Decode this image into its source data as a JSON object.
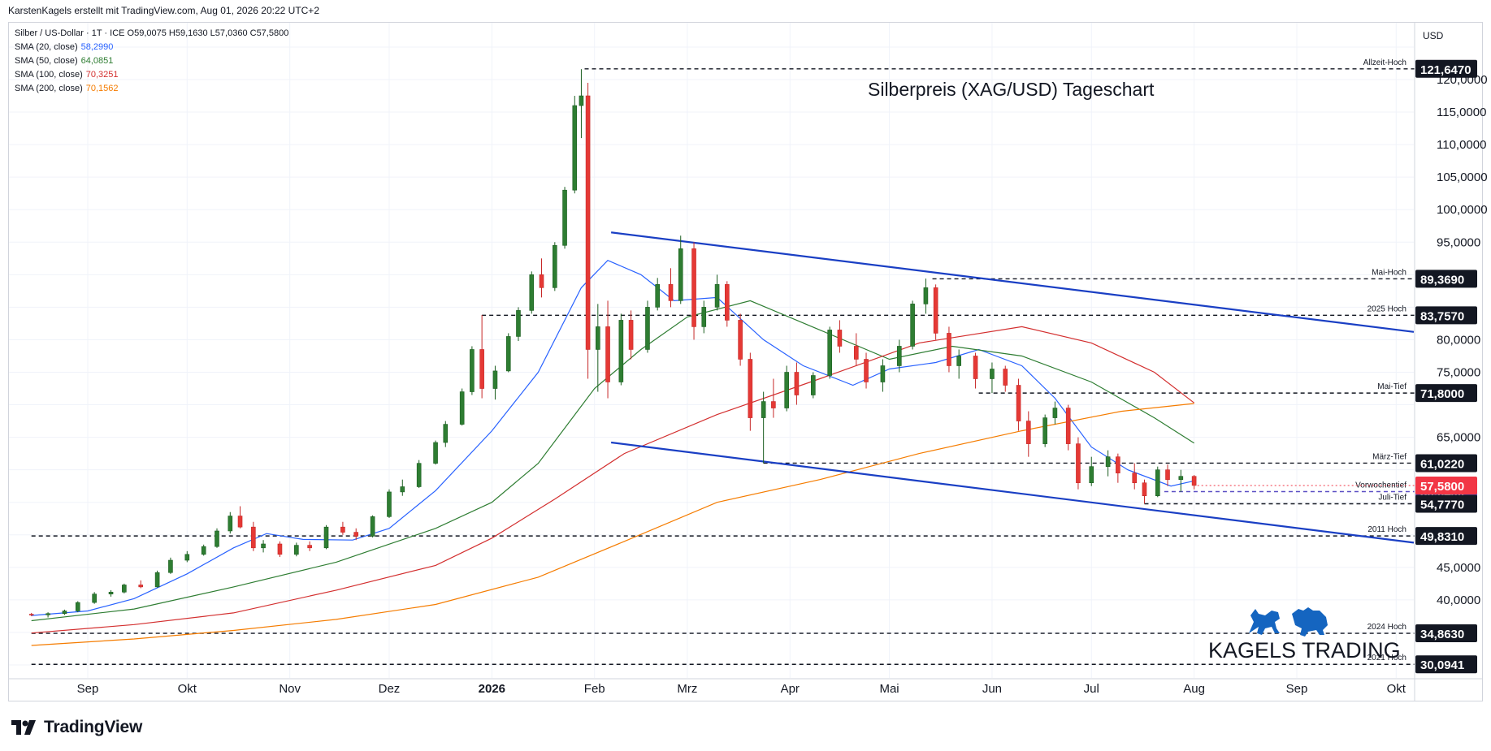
{
  "header": {
    "attribution": "KarstenKagels erstellt mit TradingView.com, Aug 01, 2026 20:22 UTC+2"
  },
  "branding": {
    "tradingview": "TradingView",
    "kagels": "KAGELS TRADING"
  },
  "legend": {
    "symbol_line": "Silber / US-Dollar · 1T · ICE  O59,0075  H59,1630  L57,0360  C57,5800",
    "sma": [
      {
        "label": "SMA (20, close)",
        "value": "58,2990",
        "color": "#2962ff"
      },
      {
        "label": "SMA (50, close)",
        "value": "64,0851",
        "color": "#2e7d32"
      },
      {
        "label": "SMA (100, close)",
        "value": "70,3251",
        "color": "#d32f2f"
      },
      {
        "label": "SMA (200, close)",
        "value": "70,1562",
        "color": "#f57c00"
      }
    ]
  },
  "chart_data": {
    "type": "candlestick",
    "title": "Silberpreis (XAG/USD) Tageschart",
    "currency": "USD",
    "ylim": [
      28,
      126
    ],
    "x_ticks": [
      {
        "label": "Sep",
        "date": "2025-09-01"
      },
      {
        "label": "Okt",
        "date": "2025-10-01"
      },
      {
        "label": "Nov",
        "date": "2025-11-01"
      },
      {
        "label": "Dez",
        "date": "2025-12-01"
      },
      {
        "label": "2026",
        "date": "2026-01-01",
        "bold": true
      },
      {
        "label": "Feb",
        "date": "2026-02-01"
      },
      {
        "label": "Mrz",
        "date": "2026-03-01"
      },
      {
        "label": "Apr",
        "date": "2026-04-01"
      },
      {
        "label": "Mai",
        "date": "2026-05-01"
      },
      {
        "label": "Jun",
        "date": "2026-06-01"
      },
      {
        "label": "Jul",
        "date": "2026-07-01"
      },
      {
        "label": "Aug",
        "date": "2026-08-01"
      },
      {
        "label": "Sep",
        "date": "2026-09-01"
      },
      {
        "label": "Okt",
        "date": "2026-10-01"
      }
    ],
    "y_ticks": [
      "40,0000",
      "45,0000",
      "65,0000",
      "75,0000",
      "80,0000",
      "95,0000",
      "100,0000",
      "105,0000",
      "110,0000",
      "115,0000",
      "120,0000"
    ],
    "y_tick_values": [
      40,
      45,
      65,
      75,
      80,
      95,
      100,
      105,
      110,
      115,
      120
    ],
    "price_levels": [
      {
        "label": "Allzeit-Hoch",
        "value": 121.647,
        "text": "121,6470",
        "color": "#131722",
        "from": "2026-01-29"
      },
      {
        "label": "Mai-Hoch",
        "value": 89.369,
        "text": "89,3690",
        "color": "#131722",
        "from": "2026-05-14"
      },
      {
        "label": "2025 Hoch",
        "value": 83.757,
        "text": "83,7570",
        "color": "#131722",
        "from": "2025-12-29"
      },
      {
        "label": "Mai-Tief",
        "value": 71.8,
        "text": "71,8000",
        "color": "#131722",
        "from": "2026-05-28"
      },
      {
        "label": "März-Tief",
        "value": 61.022,
        "text": "61,0220",
        "color": "#131722",
        "from": "2026-03-24"
      },
      {
        "label": "Vorwochentief",
        "value": 56.649,
        "text": "56,6490",
        "color": "#5b4fc4",
        "from": "2026-07-23"
      },
      {
        "label": "Juli-Tief",
        "value": 54.777,
        "text": "54,7770",
        "color": "#131722",
        "from": "2026-07-17"
      },
      {
        "label": "2011 Hoch",
        "value": 49.831,
        "text": "49,8310",
        "color": "#131722",
        "from": "2025-08-15"
      },
      {
        "label": "2024 Hoch",
        "value": 34.863,
        "text": "34,8630",
        "color": "#131722",
        "from": "2025-08-15"
      },
      {
        "label": "2021 Hoch",
        "value": 30.0941,
        "text": "30,0941",
        "color": "#131722",
        "from": "2025-08-15"
      }
    ],
    "last_price": {
      "value": 57.58,
      "text": "57,5800",
      "color": "#f23645"
    },
    "channel": [
      {
        "from_date": "2026-02-06",
        "from_value": 96.5,
        "to_date": "2026-10-10",
        "to_value": 81.2
      },
      {
        "from_date": "2026-02-06",
        "from_value": 64.2,
        "to_date": "2026-10-10",
        "to_value": 48.8
      }
    ],
    "sma_series": [
      {
        "name": "SMA (20, close)",
        "color": "#2962ff",
        "points": [
          [
            "2025-08-15",
            37.6
          ],
          [
            "2025-09-01",
            38.3
          ],
          [
            "2025-09-15",
            40.2
          ],
          [
            "2025-10-01",
            44.0
          ],
          [
            "2025-10-15",
            48.0
          ],
          [
            "2025-10-25",
            50.2
          ],
          [
            "2025-11-05",
            49.3
          ],
          [
            "2025-11-20",
            49.2
          ],
          [
            "2025-12-01",
            51.0
          ],
          [
            "2025-12-15",
            56.8
          ],
          [
            "2026-01-01",
            66.0
          ],
          [
            "2026-01-15",
            75.0
          ],
          [
            "2026-01-28",
            88.0
          ],
          [
            "2026-02-05",
            92.2
          ],
          [
            "2026-02-15",
            90.0
          ],
          [
            "2026-02-25",
            86.0
          ],
          [
            "2026-03-10",
            86.5
          ],
          [
            "2026-03-24",
            80.0
          ],
          [
            "2026-04-05",
            76.0
          ],
          [
            "2026-04-20",
            73.0
          ],
          [
            "2026-05-01",
            75.5
          ],
          [
            "2026-05-15",
            76.5
          ],
          [
            "2026-05-28",
            78.5
          ],
          [
            "2026-06-10",
            76.0
          ],
          [
            "2026-06-20",
            71.0
          ],
          [
            "2026-07-01",
            63.5
          ],
          [
            "2026-07-12",
            60.0
          ],
          [
            "2026-07-25",
            57.5
          ],
          [
            "2026-08-01",
            58.3
          ]
        ]
      },
      {
        "name": "SMA (50, close)",
        "color": "#2e7d32",
        "points": [
          [
            "2025-08-15",
            36.8
          ],
          [
            "2025-09-15",
            38.6
          ],
          [
            "2025-10-15",
            42.0
          ],
          [
            "2025-11-15",
            45.8
          ],
          [
            "2025-12-15",
            51.0
          ],
          [
            "2026-01-01",
            55.0
          ],
          [
            "2026-01-15",
            61.0
          ],
          [
            "2026-02-01",
            72.5
          ],
          [
            "2026-02-15",
            78.5
          ],
          [
            "2026-03-01",
            83.5
          ],
          [
            "2026-03-20",
            86.0
          ],
          [
            "2026-04-10",
            81.5
          ],
          [
            "2026-05-01",
            77.0
          ],
          [
            "2026-05-20",
            79.0
          ],
          [
            "2026-06-10",
            77.5
          ],
          [
            "2026-07-01",
            73.5
          ],
          [
            "2026-07-20",
            68.0
          ],
          [
            "2026-08-01",
            64.1
          ]
        ]
      },
      {
        "name": "SMA (100, close)",
        "color": "#d32f2f",
        "points": [
          [
            "2025-08-15",
            34.9
          ],
          [
            "2025-09-15",
            36.2
          ],
          [
            "2025-10-15",
            38.0
          ],
          [
            "2025-11-15",
            41.5
          ],
          [
            "2025-12-15",
            45.3
          ],
          [
            "2026-01-01",
            49.5
          ],
          [
            "2026-01-20",
            55.5
          ],
          [
            "2026-02-10",
            62.5
          ],
          [
            "2026-03-10",
            68.5
          ],
          [
            "2026-04-10",
            74.0
          ],
          [
            "2026-05-10",
            79.5
          ],
          [
            "2026-06-10",
            82.0
          ],
          [
            "2026-07-01",
            79.5
          ],
          [
            "2026-07-20",
            75.0
          ],
          [
            "2026-08-01",
            70.3
          ]
        ]
      },
      {
        "name": "SMA (200, close)",
        "color": "#f57c00",
        "points": [
          [
            "2025-08-15",
            33.0
          ],
          [
            "2025-09-15",
            34.0
          ],
          [
            "2025-10-15",
            35.3
          ],
          [
            "2025-11-15",
            37.0
          ],
          [
            "2025-12-15",
            39.3
          ],
          [
            "2026-01-15",
            43.5
          ],
          [
            "2026-02-10",
            49.0
          ],
          [
            "2026-03-10",
            55.0
          ],
          [
            "2026-04-10",
            58.5
          ],
          [
            "2026-05-10",
            62.5
          ],
          [
            "2026-06-10",
            66.0
          ],
          [
            "2026-07-10",
            69.0
          ],
          [
            "2026-08-01",
            70.2
          ]
        ]
      }
    ],
    "candles": [
      [
        "2025-08-15",
        37.8,
        38.0,
        37.5,
        37.7
      ],
      [
        "2025-08-20",
        37.7,
        38.1,
        37.3,
        37.9
      ],
      [
        "2025-08-25",
        37.9,
        38.5,
        37.7,
        38.3
      ],
      [
        "2025-08-29",
        38.3,
        39.8,
        38.1,
        39.6
      ],
      [
        "2025-09-03",
        39.6,
        41.2,
        39.4,
        40.9
      ],
      [
        "2025-09-08",
        40.9,
        41.5,
        40.5,
        41.2
      ],
      [
        "2025-09-12",
        41.2,
        42.5,
        41.0,
        42.3
      ],
      [
        "2025-09-17",
        42.3,
        43.0,
        41.8,
        42.0
      ],
      [
        "2025-09-22",
        42.0,
        44.5,
        41.9,
        44.2
      ],
      [
        "2025-09-26",
        44.2,
        46.5,
        44.0,
        46.1
      ],
      [
        "2025-10-01",
        46.1,
        47.5,
        45.8,
        47.0
      ],
      [
        "2025-10-06",
        47.0,
        48.5,
        46.8,
        48.2
      ],
      [
        "2025-10-10",
        48.2,
        51.0,
        48.0,
        50.6
      ],
      [
        "2025-10-14",
        50.6,
        53.5,
        50.2,
        52.9
      ],
      [
        "2025-10-17",
        52.9,
        54.4,
        51.0,
        51.2
      ],
      [
        "2025-10-21",
        51.2,
        52.0,
        47.5,
        48.0
      ],
      [
        "2025-10-24",
        48.0,
        49.2,
        47.3,
        48.6
      ],
      [
        "2025-10-29",
        48.6,
        49.0,
        46.6,
        47.0
      ],
      [
        "2025-11-03",
        47.0,
        48.8,
        46.7,
        48.4
      ],
      [
        "2025-11-07",
        48.4,
        49.0,
        47.5,
        48.0
      ],
      [
        "2025-11-12",
        48.0,
        51.5,
        47.8,
        51.2
      ],
      [
        "2025-11-17",
        51.2,
        52.0,
        50.0,
        50.4
      ],
      [
        "2025-11-21",
        50.4,
        51.0,
        49.2,
        49.8
      ],
      [
        "2025-11-26",
        49.8,
        53.0,
        49.6,
        52.8
      ],
      [
        "2025-12-01",
        52.8,
        57.0,
        52.6,
        56.6
      ],
      [
        "2025-12-05",
        56.6,
        58.5,
        56.0,
        57.4
      ],
      [
        "2025-12-10",
        57.4,
        61.5,
        57.2,
        61.0
      ],
      [
        "2025-12-15",
        61.0,
        64.5,
        60.8,
        64.2
      ],
      [
        "2025-12-18",
        64.2,
        67.5,
        63.5,
        67.0
      ],
      [
        "2025-12-23",
        67.0,
        72.5,
        66.8,
        72.0
      ],
      [
        "2025-12-26",
        72.0,
        79.0,
        71.5,
        78.5
      ],
      [
        "2025-12-29",
        78.5,
        83.8,
        71.0,
        72.5
      ],
      [
        "2026-01-02",
        72.5,
        76.0,
        70.8,
        75.2
      ],
      [
        "2026-01-06",
        75.2,
        81.0,
        75.0,
        80.5
      ],
      [
        "2026-01-09",
        80.5,
        85.0,
        79.8,
        84.5
      ],
      [
        "2026-01-13",
        84.5,
        90.5,
        84.0,
        90.0
      ],
      [
        "2026-01-16",
        90.0,
        92.5,
        86.5,
        88.0
      ],
      [
        "2026-01-20",
        88.0,
        95.0,
        87.5,
        94.5
      ],
      [
        "2026-01-23",
        94.5,
        103.5,
        94.0,
        103.0
      ],
      [
        "2026-01-26",
        103.0,
        117.5,
        102.5,
        116.0
      ],
      [
        "2026-01-28",
        116.0,
        121.6,
        111.0,
        117.5
      ],
      [
        "2026-01-30",
        117.5,
        119.5,
        74.0,
        78.5
      ],
      [
        "2026-02-02",
        78.5,
        85.5,
        72.0,
        82.0
      ],
      [
        "2026-02-05",
        82.0,
        86.0,
        71.0,
        73.5
      ],
      [
        "2026-02-09",
        73.5,
        84.0,
        73.0,
        83.0
      ],
      [
        "2026-02-12",
        83.0,
        84.5,
        77.0,
        78.5
      ],
      [
        "2026-02-17",
        78.5,
        86.0,
        78.0,
        85.0
      ],
      [
        "2026-02-20",
        85.0,
        89.5,
        84.5,
        88.5
      ],
      [
        "2026-02-24",
        88.5,
        91.0,
        85.0,
        86.0
      ],
      [
        "2026-02-27",
        86.0,
        96.0,
        85.5,
        94.0
      ],
      [
        "2026-03-03",
        94.0,
        95.0,
        80.0,
        82.0
      ],
      [
        "2026-03-06",
        82.0,
        86.0,
        81.0,
        85.0
      ],
      [
        "2026-03-10",
        85.0,
        90.0,
        84.5,
        88.5
      ],
      [
        "2026-03-13",
        88.5,
        89.0,
        82.0,
        83.0
      ],
      [
        "2026-03-17",
        83.0,
        84.0,
        76.0,
        77.0
      ],
      [
        "2026-03-20",
        77.0,
        78.0,
        66.0,
        68.0
      ],
      [
        "2026-03-24",
        68.0,
        72.0,
        61.0,
        70.5
      ],
      [
        "2026-03-27",
        70.5,
        74.0,
        68.0,
        69.5
      ],
      [
        "2026-03-31",
        69.5,
        76.0,
        69.0,
        75.0
      ],
      [
        "2026-04-03",
        75.0,
        76.5,
        70.0,
        71.5
      ],
      [
        "2026-04-08",
        71.5,
        75.0,
        71.0,
        74.5
      ],
      [
        "2026-04-13",
        74.5,
        82.0,
        74.0,
        81.5
      ],
      [
        "2026-04-16",
        81.5,
        83.0,
        78.0,
        79.0
      ],
      [
        "2026-04-21",
        79.0,
        81.0,
        76.0,
        77.0
      ],
      [
        "2026-04-24",
        77.0,
        78.0,
        72.5,
        73.5
      ],
      [
        "2026-04-29",
        73.5,
        77.0,
        72.0,
        76.0
      ],
      [
        "2026-05-04",
        76.0,
        80.0,
        75.0,
        79.0
      ],
      [
        "2026-05-08",
        79.0,
        86.0,
        78.5,
        85.5
      ],
      [
        "2026-05-12",
        85.5,
        89.4,
        84.0,
        88.0
      ],
      [
        "2026-05-15",
        88.0,
        88.5,
        80.0,
        81.0
      ],
      [
        "2026-05-19",
        81.0,
        82.0,
        75.0,
        76.0
      ],
      [
        "2026-05-22",
        76.0,
        78.5,
        74.0,
        77.5
      ],
      [
        "2026-05-27",
        77.5,
        78.0,
        72.5,
        74.0
      ],
      [
        "2026-06-01",
        74.0,
        76.5,
        71.8,
        75.5
      ],
      [
        "2026-06-05",
        75.5,
        76.0,
        72.0,
        73.0
      ],
      [
        "2026-06-09",
        73.0,
        74.0,
        66.0,
        67.5
      ],
      [
        "2026-06-12",
        67.5,
        69.0,
        62.0,
        64.0
      ],
      [
        "2026-06-17",
        64.0,
        68.5,
        63.5,
        68.0
      ],
      [
        "2026-06-20",
        68.0,
        70.5,
        67.0,
        69.5
      ],
      [
        "2026-06-24",
        69.5,
        70.0,
        63.0,
        64.0
      ],
      [
        "2026-06-27",
        64.0,
        65.0,
        57.0,
        58.0
      ],
      [
        "2026-07-01",
        58.0,
        62.0,
        57.5,
        60.5
      ],
      [
        "2026-07-06",
        60.5,
        63.0,
        59.0,
        62.0
      ],
      [
        "2026-07-09",
        62.0,
        62.5,
        58.0,
        59.5
      ],
      [
        "2026-07-14",
        59.5,
        61.0,
        57.0,
        58.0
      ],
      [
        "2026-07-17",
        58.0,
        58.5,
        54.8,
        56.0
      ],
      [
        "2026-07-21",
        56.0,
        60.5,
        55.8,
        60.0
      ],
      [
        "2026-07-24",
        60.0,
        60.8,
        57.5,
        58.5
      ],
      [
        "2026-07-28",
        58.5,
        60.0,
        56.6,
        59.0
      ],
      [
        "2026-08-01",
        59.0,
        59.2,
        57.0,
        57.6
      ]
    ]
  }
}
